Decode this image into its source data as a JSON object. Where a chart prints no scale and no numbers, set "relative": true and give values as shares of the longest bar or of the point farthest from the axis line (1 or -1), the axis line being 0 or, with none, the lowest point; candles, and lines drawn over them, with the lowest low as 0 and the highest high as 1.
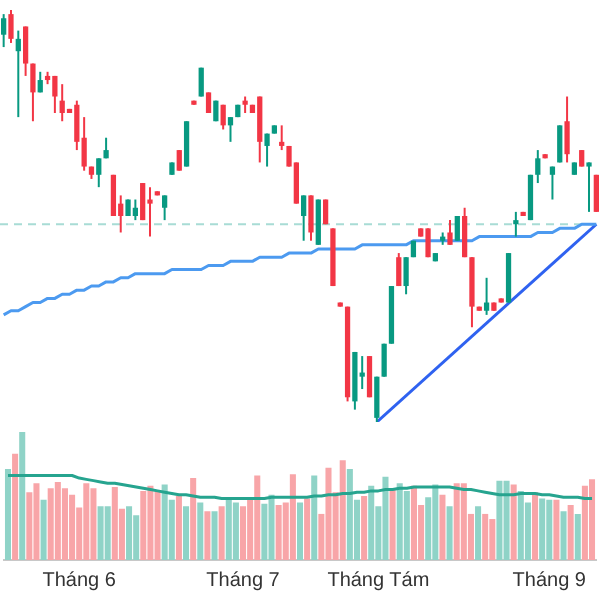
{
  "chart_data": [
    {
      "type": "candlestick",
      "relative": true,
      "tick_labels": false,
      "categories": [
        null,
        null,
        null,
        null,
        null,
        null,
        null,
        null,
        null,
        null,
        null,
        null,
        null,
        null,
        null,
        null,
        null,
        null,
        null,
        null,
        null,
        null,
        null,
        null,
        null,
        null,
        null,
        null,
        null,
        null,
        null,
        null,
        null,
        null,
        null,
        null,
        null,
        null,
        null,
        null,
        null,
        null,
        null,
        null,
        null,
        null,
        null,
        null,
        null,
        null,
        null,
        null,
        null,
        null,
        null,
        null,
        null,
        null,
        null,
        null,
        null,
        null,
        null,
        null,
        null,
        null,
        null,
        null,
        null,
        null,
        null,
        null,
        null,
        null,
        null,
        null,
        null,
        null,
        null,
        null,
        null,
        null
      ],
      "ohlc": [
        [
          0.94,
          0.99,
          0.91,
          0.98
        ],
        [
          0.99,
          1,
          0.92,
          0.93
        ],
        [
          0.9,
          0.95,
          0.74,
          0.93
        ],
        [
          0.96,
          0.96,
          0.84,
          0.87
        ],
        [
          0.87,
          0.87,
          0.73,
          0.8
        ],
        [
          0.8,
          0.85,
          0.8,
          0.83
        ],
        [
          0.84,
          0.85,
          0.82,
          0.83
        ],
        [
          0.84,
          0.84,
          0.75,
          0.79
        ],
        [
          0.78,
          0.82,
          0.73,
          0.75
        ],
        [
          0.76,
          0.76,
          0.75,
          0.75
        ],
        [
          0.77,
          0.78,
          0.66,
          0.68
        ],
        [
          0.69,
          0.74,
          0.61,
          0.62
        ],
        [
          0.62,
          0.62,
          0.59,
          0.6
        ],
        [
          0.6,
          0.64,
          0.57,
          0.64
        ],
        [
          0.64,
          0.69,
          0.64,
          0.66
        ],
        [
          0.6,
          0.6,
          0.5,
          0.5
        ],
        [
          0.53,
          0.55,
          0.46,
          0.5
        ],
        [
          0.5,
          0.54,
          0.5,
          0.54
        ],
        [
          0.5,
          0.54,
          0.49,
          0.52
        ],
        [
          0.58,
          0.58,
          0.49,
          0.49
        ],
        [
          0.54,
          0.57,
          0.45,
          0.53
        ],
        [
          0.56,
          0.56,
          0.55,
          0.55
        ],
        [
          0.52,
          0.55,
          0.49,
          0.55
        ],
        [
          0.6,
          0.63,
          0.6,
          0.63
        ],
        [
          0.66,
          0.66,
          0.61,
          0.61
        ],
        [
          0.62,
          0.73,
          0.62,
          0.73
        ],
        [
          0.78,
          0.78,
          0.77,
          0.77
        ],
        [
          0.79,
          0.86,
          0.79,
          0.86
        ],
        [
          0.8,
          0.8,
          0.75,
          0.75
        ],
        [
          0.73,
          0.78,
          0.73,
          0.78
        ],
        [
          0.77,
          0.77,
          0.71,
          0.72
        ],
        [
          0.72,
          0.74,
          0.68,
          0.74
        ],
        [
          0.74,
          0.77,
          0.74,
          0.77
        ],
        [
          0.78,
          0.79,
          0.75,
          0.77
        ],
        [
          0.77,
          0.77,
          0.75,
          0.75
        ],
        [
          0.79,
          0.79,
          0.63,
          0.68
        ],
        [
          0.67,
          0.7,
          0.62,
          0.7
        ],
        [
          0.7,
          0.72,
          0.7,
          0.72
        ],
        [
          0.68,
          0.72,
          0.66,
          0.67
        ],
        [
          0.67,
          0.67,
          0.62,
          0.62
        ],
        [
          0.63,
          0.63,
          0.53,
          0.53
        ],
        [
          0.5,
          0.55,
          0.44,
          0.55
        ],
        [
          0.55,
          0.55,
          0.44,
          0.46
        ],
        [
          0.43,
          0.54,
          0.43,
          0.54
        ],
        [
          0.54,
          0.54,
          0.48,
          0.48
        ],
        [
          0.47,
          0.47,
          0.33,
          0.33
        ],
        [
          0.29,
          0.29,
          0.28,
          0.28
        ],
        [
          0.28,
          0.28,
          0.05,
          0.06
        ],
        [
          0.05,
          0.17,
          0.03,
          0.17
        ],
        [
          0.11,
          0.16,
          0.08,
          0.12
        ],
        [
          0.16,
          0.16,
          0.06,
          0.06
        ],
        [
          0.01,
          0.11,
          0,
          0.11
        ],
        [
          0.11,
          0.19,
          0.11,
          0.19
        ],
        [
          0.19,
          0.33,
          0.19,
          0.33
        ],
        [
          0.4,
          0.41,
          0.33,
          0.33
        ],
        [
          0.33,
          0.4,
          0.31,
          0.4
        ],
        [
          0.4,
          0.44,
          0.4,
          0.44
        ],
        [
          0.47,
          0.47,
          0.45,
          0.45
        ],
        [
          0.47,
          0.47,
          0.4,
          0.4
        ],
        [
          0.39,
          0.41,
          0.39,
          0.41
        ],
        [
          0.44,
          0.46,
          0.43,
          0.45
        ],
        [
          0.46,
          0.49,
          0.43,
          0.43
        ],
        [
          0.44,
          0.5,
          0.44,
          0.5
        ],
        [
          0.5,
          0.52,
          0.4,
          0.4
        ],
        [
          0.4,
          0.4,
          0.23,
          0.28
        ],
        [
          0.28,
          0.28,
          0.27,
          0.27
        ],
        [
          0.27,
          0.35,
          0.26,
          0.29
        ],
        [
          0.29,
          0.29,
          0.27,
          0.27
        ],
        [
          0.3,
          0.3,
          0.29,
          0.29
        ],
        [
          0.29,
          0.41,
          0.29,
          0.41
        ],
        [
          0.48,
          0.51,
          0.45,
          0.49
        ],
        [
          0.51,
          0.51,
          0.5,
          0.5
        ],
        [
          0.49,
          0.6,
          0.49,
          0.6
        ],
        [
          0.6,
          0.66,
          0.58,
          0.64
        ],
        [
          0.65,
          0.65,
          0.64,
          0.64
        ],
        [
          0.6,
          0.62,
          0.54,
          0.62
        ],
        [
          0.63,
          0.72,
          0.63,
          0.72
        ],
        [
          0.73,
          0.79,
          0.63,
          0.65
        ],
        [
          0.6,
          0.63,
          0.6,
          0.63
        ],
        [
          0.66,
          0.66,
          0.62,
          0.62
        ],
        [
          0.62,
          0.63,
          0.51,
          0.63
        ],
        [
          0.6,
          0.6,
          0.51,
          0.51
        ]
      ],
      "series": [
        {
          "type": "line",
          "color": "#4c9af0",
          "values": [
            0.26,
            0.27,
            0.27,
            0.28,
            0.29,
            0.29,
            0.3,
            0.3,
            0.31,
            0.31,
            0.32,
            0.32,
            0.33,
            0.33,
            0.34,
            0.34,
            0.35,
            0.35,
            0.36,
            0.36,
            0.36,
            0.36,
            0.36,
            0.37,
            0.37,
            0.37,
            0.37,
            0.37,
            0.38,
            0.38,
            0.38,
            0.39,
            0.39,
            0.39,
            0.39,
            0.4,
            0.4,
            0.4,
            0.4,
            0.41,
            0.41,
            0.41,
            0.41,
            0.42,
            0.42,
            0.42,
            0.42,
            0.42,
            0.42,
            0.43,
            0.43,
            0.43,
            0.43,
            0.43,
            0.43,
            0.43,
            0.44,
            0.44,
            0.44,
            0.44,
            0.44,
            0.44,
            0.44,
            0.44,
            0.44,
            0.45,
            0.45,
            0.45,
            0.45,
            0.45,
            0.45,
            0.45,
            0.45,
            0.46,
            0.46,
            0.46,
            0.47,
            0.47,
            0.47,
            0.48,
            0.48,
            0.48
          ]
        },
        {
          "type": "line",
          "color": "#2f62f0",
          "values": [
            null,
            null,
            null,
            null,
            null,
            null,
            null,
            null,
            null,
            null,
            null,
            null,
            null,
            null,
            null,
            null,
            null,
            null,
            null,
            null,
            null,
            null,
            null,
            null,
            null,
            null,
            null,
            null,
            null,
            null,
            null,
            null,
            null,
            null,
            null,
            null,
            null,
            null,
            null,
            null,
            null,
            null,
            null,
            null,
            null,
            null,
            null,
            null,
            null,
            null,
            null,
            0,
            null,
            null,
            null,
            null,
            null,
            null,
            null,
            null,
            null,
            null,
            null,
            null,
            null,
            null,
            null,
            null,
            null,
            null,
            null,
            null,
            null,
            null,
            null,
            null,
            null,
            null,
            null,
            null,
            null,
            0.48
          ]
        }
      ],
      "ref_lines": [
        {
          "axis": "y",
          "value": 0.48,
          "color": "#a8dcd5",
          "line_style": "dashed"
        }
      ]
    },
    {
      "type": "bar",
      "relative": true,
      "tick_labels": "x",
      "categories": [
        null,
        null,
        null,
        null,
        null,
        null,
        null,
        null,
        null,
        null,
        "Tháng 6",
        null,
        null,
        null,
        null,
        null,
        null,
        null,
        null,
        null,
        null,
        null,
        null,
        null,
        null,
        null,
        null,
        null,
        null,
        null,
        null,
        null,
        null,
        "Tháng 7",
        null,
        null,
        null,
        null,
        null,
        null,
        null,
        null,
        null,
        null,
        null,
        null,
        null,
        null,
        null,
        null,
        null,
        null,
        "Tháng Tám",
        null,
        null,
        null,
        null,
        null,
        null,
        null,
        null,
        null,
        null,
        null,
        null,
        null,
        null,
        null,
        null,
        null,
        null,
        null,
        null,
        null,
        null,
        null,
        "Tháng 9",
        null,
        null,
        null,
        null,
        null,
        null
      ],
      "series": [
        {
          "type": "bar",
          "values": [
            0.71,
            0.83,
            1,
            0.53,
            0.6,
            0.47,
            0.56,
            0.61,
            0.56,
            0.51,
            0.41,
            0.6,
            0.56,
            0.42,
            0.42,
            0.57,
            0.4,
            0.42,
            0.35,
            0.54,
            0.58,
            0.54,
            0.59,
            0.47,
            0.5,
            0.42,
            0.64,
            0.45,
            0.38,
            0.38,
            0.42,
            0.47,
            0.45,
            0.42,
            0.49,
            0.66,
            0.44,
            0.51,
            0.43,
            0.45,
            0.67,
            0.45,
            0.48,
            0.66,
            0.36,
            0.72,
            0.53,
            0.78,
            0.71,
            0.47,
            0.5,
            0.58,
            0.42,
            0.65,
            0.56,
            0.6,
            0.54,
            0.58,
            0.43,
            0.49,
            0.59,
            0.51,
            0.42,
            0.6,
            0.6,
            0.36,
            0.42,
            0.36,
            0.32,
            0.62,
            0.62,
            0.59,
            0.54,
            0.45,
            0.53,
            0.48,
            0.47,
            0.47,
            0.38,
            0.43,
            0.36,
            0.58,
            0.63
          ],
          "colors": [
            "#8fd3c7",
            "#f8a5a8",
            "#8fd3c7",
            "#f8a5a8",
            "#f8a5a8",
            "#8fd3c7",
            "#f8a5a8",
            "#f8a5a8",
            "#f8a5a8",
            "#f8a5a8",
            "#f8a5a8",
            "#f8a5a8",
            "#f8a5a8",
            "#8fd3c7",
            "#8fd3c7",
            "#f8a5a8",
            "#f8a5a8",
            "#8fd3c7",
            "#8fd3c7",
            "#f8a5a8",
            "#f8a5a8",
            "#f8a5a8",
            "#8fd3c7",
            "#8fd3c7",
            "#f8a5a8",
            "#8fd3c7",
            "#f8a5a8",
            "#8fd3c7",
            "#f8a5a8",
            "#8fd3c7",
            "#f8a5a8",
            "#8fd3c7",
            "#8fd3c7",
            "#f8a5a8",
            "#f8a5a8",
            "#f8a5a8",
            "#8fd3c7",
            "#8fd3c7",
            "#f8a5a8",
            "#f8a5a8",
            "#f8a5a8",
            "#8fd3c7",
            "#f8a5a8",
            "#8fd3c7",
            "#f8a5a8",
            "#f8a5a8",
            "#f8a5a8",
            "#f8a5a8",
            "#8fd3c7",
            "#8fd3c7",
            "#f8a5a8",
            "#8fd3c7",
            "#8fd3c7",
            "#8fd3c7",
            "#f8a5a8",
            "#8fd3c7",
            "#8fd3c7",
            "#f8a5a8",
            "#f8a5a8",
            "#8fd3c7",
            "#8fd3c7",
            "#f8a5a8",
            "#8fd3c7",
            "#f8a5a8",
            "#f8a5a8",
            "#f8a5a8",
            "#8fd3c7",
            "#f8a5a8",
            "#f8a5a8",
            "#8fd3c7",
            "#8fd3c7",
            "#f8a5a8",
            "#8fd3c7",
            "#8fd3c7",
            "#f8a5a8",
            "#8fd3c7",
            "#8fd3c7",
            "#f8a5a8",
            "#8fd3c7",
            "#f8a5a8",
            "#8fd3c7",
            "#f8a5a8",
            "#f8a5a8"
          ]
        },
        {
          "type": "line",
          "color": "#26a48f",
          "values": [
            0.66,
            0.66,
            0.66,
            0.66,
            0.66,
            0.66,
            0.66,
            0.66,
            0.66,
            0.66,
            0.64,
            0.63,
            0.62,
            0.61,
            0.6,
            0.6,
            0.59,
            0.58,
            0.57,
            0.56,
            0.55,
            0.54,
            0.53,
            0.52,
            0.51,
            0.51,
            0.5,
            0.49,
            0.49,
            0.49,
            0.48,
            0.48,
            0.48,
            0.48,
            0.48,
            0.48,
            0.48,
            0.49,
            0.49,
            0.49,
            0.49,
            0.49,
            0.49,
            0.5,
            0.5,
            0.51,
            0.51,
            0.52,
            0.52,
            0.53,
            0.53,
            0.54,
            0.54,
            0.55,
            0.55,
            0.56,
            0.56,
            0.57,
            0.57,
            0.57,
            0.57,
            0.57,
            0.57,
            0.56,
            0.55,
            0.55,
            0.54,
            0.53,
            0.52,
            0.51,
            0.51,
            0.51,
            0.52,
            0.52,
            0.52,
            0.51,
            0.51,
            0.5,
            0.49,
            0.49,
            0.49,
            0.48,
            0.48
          ]
        }
      ]
    }
  ]
}
